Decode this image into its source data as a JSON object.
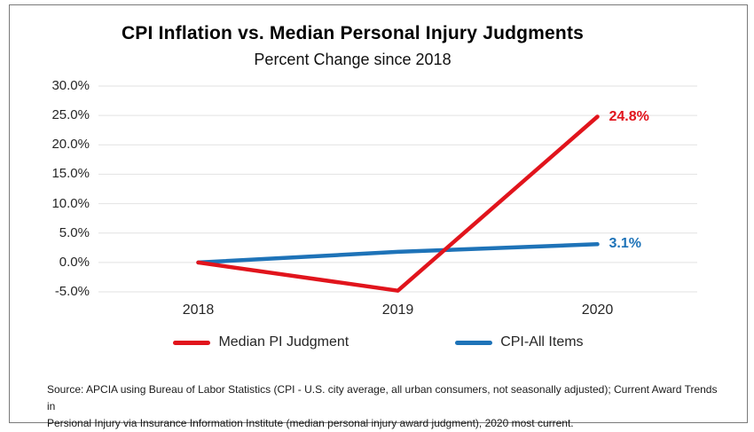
{
  "chart_data": {
    "type": "line",
    "title": "CPI Inflation vs. Median Personal Injury Judgments",
    "subtitle": "Percent Change since 2018",
    "categories": [
      "2018",
      "2019",
      "2020"
    ],
    "series": [
      {
        "name": "Median PI Judgment",
        "values": [
          0,
          -4.8,
          24.8
        ],
        "color": "#e1141c",
        "end_label": "24.8%"
      },
      {
        "name": "CPI-All Items",
        "values": [
          0,
          1.8,
          3.1
        ],
        "color": "#1e73b8",
        "end_label": "3.1%"
      }
    ],
    "ylim": [
      -5,
      30
    ],
    "yticks": [
      {
        "label": "30.0%",
        "value": 30
      },
      {
        "label": "25.0%",
        "value": 25
      },
      {
        "label": "20.0%",
        "value": 20
      },
      {
        "label": "15.0%",
        "value": 15
      },
      {
        "label": "10.0%",
        "value": 10
      },
      {
        "label": "5.0%",
        "value": 5
      },
      {
        "label": "0.0%",
        "value": 0
      },
      {
        "label": "-5.0%",
        "value": -5
      }
    ],
    "xlabel": "",
    "ylabel": "",
    "grid": "horizontal",
    "gridline_color": "#e2e2e2",
    "legend_position": "bottom"
  },
  "source": {
    "line1": "Source: APCIA using Bureau of Labor Statistics (CPI - U.S. city average, all urban consumers, not seasonally adjusted); Current Award Trends in",
    "line2": "Persional Injury via Insurance Information Institute (median personal injury award judgment), 2020 most current."
  }
}
